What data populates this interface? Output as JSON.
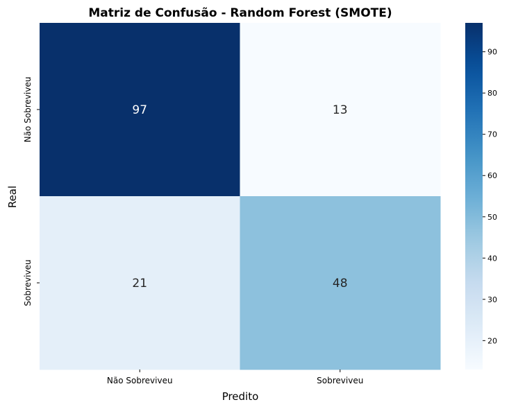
{
  "chart_data": {
    "type": "heatmap",
    "title": "Matriz de Confusão - Random Forest (SMOTE)",
    "xlabel": "Predito",
    "ylabel": "Real",
    "x_categories": [
      "Não Sobreviveu",
      "Sobreviveu"
    ],
    "y_categories": [
      "Não Sobreviveu",
      "Sobreviveu"
    ],
    "values": [
      [
        97,
        13
      ],
      [
        21,
        48
      ]
    ],
    "colormap": "Blues",
    "colorbar": {
      "vmin": 13,
      "vmax": 97,
      "ticks": [
        20,
        30,
        40,
        50,
        60,
        70,
        80,
        90
      ]
    },
    "colors": {
      "low": "#f7fbff",
      "high": "#08306b",
      "text_dark": "#262626",
      "text_light": "#ffffff"
    }
  }
}
